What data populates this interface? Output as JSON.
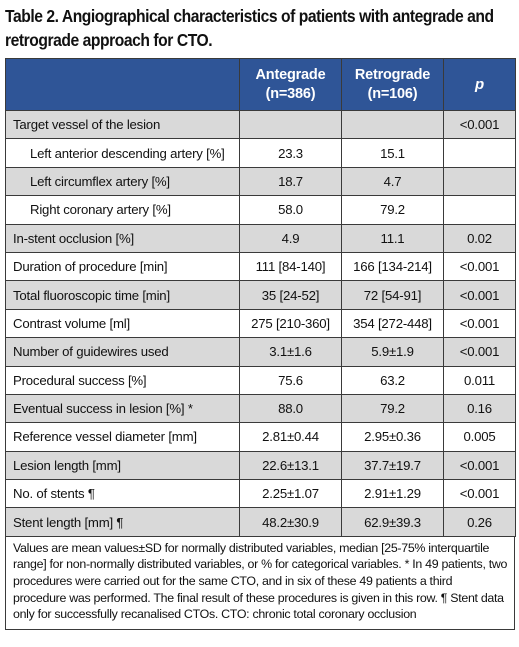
{
  "title": "Table 2. Angiographical characteristics of patients with antegrade and retrograde approach for CTO.",
  "columns": {
    "antegrade": "Antegrade (n=386)",
    "retrograde": "Retrograde (n=106)",
    "p": "p"
  },
  "rows": [
    {
      "label": "Target vessel of the lesion",
      "antegrade": "",
      "retrograde": "",
      "p": "<0.001"
    },
    {
      "label": "Left anterior descending artery [%]",
      "antegrade": "23.3",
      "retrograde": "15.1",
      "p": ""
    },
    {
      "label": "Left circumflex artery [%]",
      "antegrade": "18.7",
      "retrograde": "4.7",
      "p": ""
    },
    {
      "label": "Right coronary artery [%]",
      "antegrade": "58.0",
      "retrograde": "79.2",
      "p": ""
    },
    {
      "label": "In-stent occlusion [%]",
      "antegrade": "4.9",
      "retrograde": "11.1",
      "p": "0.02"
    },
    {
      "label": "Duration of procedure [min]",
      "antegrade": "111 [84-140]",
      "retrograde": "166 [134-214]",
      "p": "<0.001"
    },
    {
      "label": "Total fluoroscopic time [min]",
      "antegrade": "35 [24-52]",
      "retrograde": "72 [54-91]",
      "p": "<0.001"
    },
    {
      "label": "Contrast volume [ml]",
      "antegrade": "275 [210-360]",
      "retrograde": "354 [272-448]",
      "p": "<0.001"
    },
    {
      "label": "Number of guidewires used",
      "antegrade": "3.1±1.6",
      "retrograde": "5.9±1.9",
      "p": "<0.001"
    },
    {
      "label": "Procedural success [%]",
      "antegrade": "75.6",
      "retrograde": "63.2",
      "p": "0.011"
    },
    {
      "label": "Eventual success in lesion [%] *",
      "antegrade": "88.0",
      "retrograde": "79.2",
      "p": "0.16"
    },
    {
      "label": "Reference vessel diameter [mm]",
      "antegrade": "2.81±0.44",
      "retrograde": "2.95±0.36",
      "p": "0.005"
    },
    {
      "label": "Lesion length [mm]",
      "antegrade": "22.6±13.1",
      "retrograde": "37.7±19.7",
      "p": "<0.001"
    },
    {
      "label": "No. of stents ¶",
      "antegrade": "2.25±1.07",
      "retrograde": "2.91±1.29",
      "p": "<0.001"
    },
    {
      "label": "Stent length [mm] ¶",
      "antegrade": "48.2±30.9",
      "retrograde": "62.9±39.3",
      "p": "0.26"
    }
  ],
  "footnote": "Values are mean values±SD for normally distributed variables, median [25-75% interquartile range] for non-normally distributed variables, or % for categorical variables. * In 49 patients, two procedures were carried out for the same CTO, and in six of these 49 patients a third procedure was performed. The final result of these procedures is given in this row. ¶ Stent data only for successfully recanalised CTOs. CTO: chronic total coronary occlusion"
}
